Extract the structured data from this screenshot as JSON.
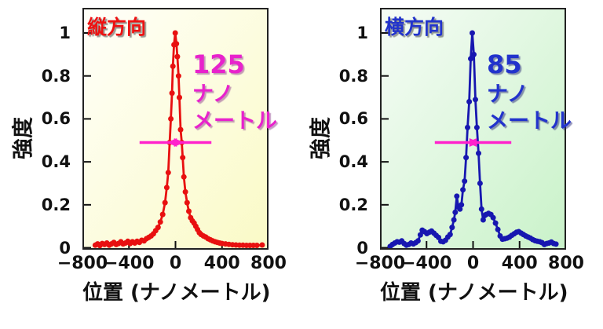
{
  "figure": {
    "background": "#ffffff"
  },
  "chart_data": [
    {
      "type": "line",
      "title": "縦方向",
      "title_color": "#ee1111",
      "xlabel": "位置 (ナノメートル)",
      "ylabel": "強度",
      "xlim": [
        -800,
        800
      ],
      "ylim": [
        0,
        1
      ],
      "ylim_display": [
        -0.009,
        1.117
      ],
      "grid": false,
      "yticks": [
        0,
        0.2,
        0.4,
        0.6,
        0.8,
        1
      ],
      "ytick_labels": [
        "0",
        "0.2",
        "0.4",
        "0.6",
        "0.8",
        "1"
      ],
      "xticks": [
        -400,
        0,
        400
      ],
      "xtick_label_values": [
        -800,
        -400,
        0,
        400,
        800
      ],
      "xtick_labels": [
        "−800",
        "−400",
        "0",
        "400",
        "800"
      ],
      "line_color": "#e81010",
      "marker_color": "#e81010",
      "bg_gradient": [
        "#fffffa",
        "#fafac6"
      ],
      "annotation_lines": [
        "125",
        "ナノ",
        "メートル"
      ],
      "annotation_color": "#e822cc",
      "annotation_shadow": "rgba(140,60,140,0.5)",
      "fwhm_nm": 125,
      "arrow_color": "#ff22cc",
      "arrow_level": 0.49,
      "points": [
        [
          -690,
          0.012
        ],
        [
          -670,
          0.018
        ],
        [
          -650,
          0.01
        ],
        [
          -630,
          0.02
        ],
        [
          -610,
          0.015
        ],
        [
          -590,
          0.022
        ],
        [
          -570,
          0.012
        ],
        [
          -550,
          0.018
        ],
        [
          -530,
          0.025
        ],
        [
          -510,
          0.015
        ],
        [
          -490,
          0.02
        ],
        [
          -470,
          0.028
        ],
        [
          -450,
          0.018
        ],
        [
          -430,
          0.022
        ],
        [
          -410,
          0.03
        ],
        [
          -390,
          0.02
        ],
        [
          -370,
          0.028
        ],
        [
          -350,
          0.022
        ],
        [
          -330,
          0.03
        ],
        [
          -310,
          0.025
        ],
        [
          -290,
          0.035
        ],
        [
          -270,
          0.032
        ],
        [
          -250,
          0.042
        ],
        [
          -230,
          0.048
        ],
        [
          -210,
          0.055
        ],
        [
          -190,
          0.065
        ],
        [
          -170,
          0.08
        ],
        [
          -150,
          0.095
        ],
        [
          -130,
          0.12
        ],
        [
          -110,
          0.155
        ],
        [
          -90,
          0.21
        ],
        [
          -75,
          0.28
        ],
        [
          -62,
          0.35
        ],
        [
          -50,
          0.49
        ],
        [
          -40,
          0.6
        ],
        [
          -30,
          0.72
        ],
        [
          -22,
          0.845
        ],
        [
          -13,
          0.945
        ],
        [
          -2,
          1.0
        ],
        [
          8,
          0.95
        ],
        [
          16,
          0.89
        ],
        [
          26,
          0.8
        ],
        [
          34,
          0.7
        ],
        [
          44,
          0.55
        ],
        [
          54,
          0.49
        ],
        [
          62,
          0.42
        ],
        [
          72,
          0.33
        ],
        [
          85,
          0.26
        ],
        [
          100,
          0.21
        ],
        [
          115,
          0.17
        ],
        [
          130,
          0.14
        ],
        [
          145,
          0.125
        ],
        [
          160,
          0.115
        ],
        [
          175,
          0.1
        ],
        [
          190,
          0.085
        ],
        [
          205,
          0.07
        ],
        [
          220,
          0.062
        ],
        [
          240,
          0.055
        ],
        [
          260,
          0.05
        ],
        [
          280,
          0.042
        ],
        [
          300,
          0.037
        ],
        [
          320,
          0.032
        ],
        [
          340,
          0.028
        ],
        [
          360,
          0.025
        ],
        [
          380,
          0.022
        ],
        [
          400,
          0.02
        ],
        [
          430,
          0.018
        ],
        [
          460,
          0.016
        ],
        [
          490,
          0.014
        ],
        [
          520,
          0.013
        ],
        [
          550,
          0.012
        ],
        [
          580,
          0.012
        ],
        [
          610,
          0.011
        ],
        [
          640,
          0.011
        ],
        [
          670,
          0.011
        ],
        [
          700,
          0.011
        ],
        [
          745,
          0.013
        ]
      ]
    },
    {
      "type": "line",
      "title": "横方向",
      "title_color": "#2233cc",
      "xlabel": "位置 (ナノメートル)",
      "ylabel": "強度",
      "xlim": [
        -800,
        800
      ],
      "ylim": [
        0,
        1
      ],
      "ylim_display": [
        -0.009,
        1.117
      ],
      "grid": false,
      "yticks": [
        0,
        0.2,
        0.4,
        0.6,
        0.8,
        1
      ],
      "ytick_labels": [
        "0",
        "0.2",
        "0.4",
        "0.6",
        "0.8",
        "1"
      ],
      "xticks": [
        -400,
        0,
        400
      ],
      "xtick_label_values": [
        -800,
        -400,
        0,
        400,
        800
      ],
      "xtick_labels": [
        "−800",
        "−400",
        "0",
        "400",
        "800"
      ],
      "line_color": "#1717b0",
      "marker_color": "#1717b0",
      "bg_gradient": [
        "#f6fcf6",
        "#c9f2c9"
      ],
      "annotation_lines": [
        "85",
        "ナノ",
        "メートル"
      ],
      "annotation_color": "#2233cc",
      "annotation_shadow": "rgba(40,40,120,0.5)",
      "fwhm_nm": 85,
      "arrow_color": "#ff22cc",
      "arrow_level": 0.49,
      "points": [
        [
          -713,
          0.006
        ],
        [
          -693,
          0.015
        ],
        [
          -673,
          0.022
        ],
        [
          -653,
          0.028
        ],
        [
          -633,
          0.026
        ],
        [
          -613,
          0.032
        ],
        [
          -593,
          0.02
        ],
        [
          -573,
          0.012
        ],
        [
          -553,
          0.015
        ],
        [
          -533,
          0.022
        ],
        [
          -513,
          0.018
        ],
        [
          -493,
          0.024
        ],
        [
          -473,
          0.032
        ],
        [
          -453,
          0.06
        ],
        [
          -437,
          0.082
        ],
        [
          -417,
          0.075
        ],
        [
          -397,
          0.066
        ],
        [
          -377,
          0.072
        ],
        [
          -357,
          0.078
        ],
        [
          -337,
          0.068
        ],
        [
          -317,
          0.058
        ],
        [
          -297,
          0.048
        ],
        [
          -277,
          0.03
        ],
        [
          -257,
          0.028
        ],
        [
          -237,
          0.035
        ],
        [
          -217,
          0.05
        ],
        [
          -197,
          0.062
        ],
        [
          -180,
          0.095
        ],
        [
          -165,
          0.13
        ],
        [
          -153,
          0.165
        ],
        [
          -140,
          0.24
        ],
        [
          -127,
          0.19
        ],
        [
          -113,
          0.18
        ],
        [
          -100,
          0.2
        ],
        [
          -87,
          0.27
        ],
        [
          -73,
          0.31
        ],
        [
          -60,
          0.42
        ],
        [
          -47,
          0.56
        ],
        [
          -33,
          0.68
        ],
        [
          -20,
          0.88
        ],
        [
          -7,
          1.0
        ],
        [
          7,
          0.9
        ],
        [
          20,
          0.69
        ],
        [
          33,
          0.56
        ],
        [
          47,
          0.44
        ],
        [
          60,
          0.3
        ],
        [
          73,
          0.18
        ],
        [
          87,
          0.13
        ],
        [
          100,
          0.15
        ],
        [
          113,
          0.155
        ],
        [
          133,
          0.16
        ],
        [
          153,
          0.155
        ],
        [
          173,
          0.14
        ],
        [
          193,
          0.115
        ],
        [
          213,
          0.085
        ],
        [
          233,
          0.055
        ],
        [
          253,
          0.04
        ],
        [
          273,
          0.042
        ],
        [
          293,
          0.045
        ],
        [
          313,
          0.05
        ],
        [
          333,
          0.058
        ],
        [
          353,
          0.065
        ],
        [
          373,
          0.072
        ],
        [
          393,
          0.075
        ],
        [
          413,
          0.068
        ],
        [
          433,
          0.062
        ],
        [
          453,
          0.055
        ],
        [
          473,
          0.05
        ],
        [
          493,
          0.045
        ],
        [
          513,
          0.038
        ],
        [
          533,
          0.033
        ],
        [
          553,
          0.03
        ],
        [
          573,
          0.028
        ],
        [
          593,
          0.024
        ],
        [
          613,
          0.015
        ],
        [
          633,
          0.02
        ],
        [
          653,
          0.022
        ],
        [
          673,
          0.027
        ],
        [
          693,
          0.02
        ],
        [
          713,
          0.017
        ]
      ]
    }
  ]
}
